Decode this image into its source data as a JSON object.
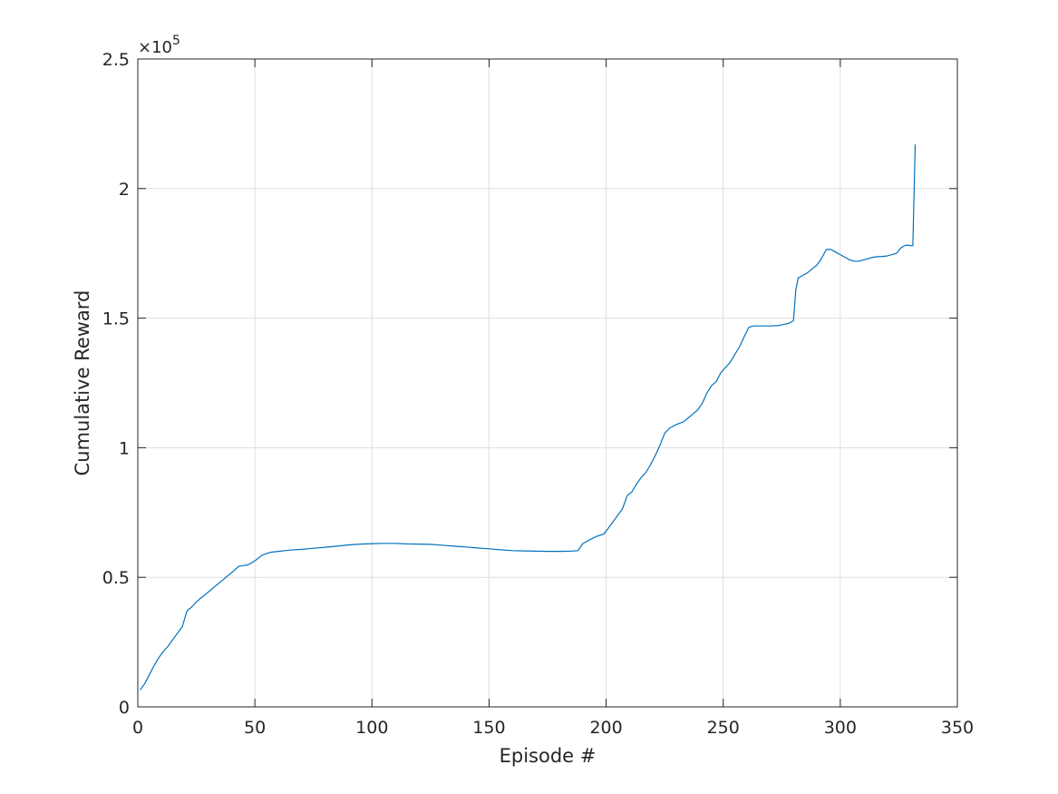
{
  "chart_data": {
    "type": "line",
    "title": "",
    "xlabel": "Episode #",
    "ylabel": "Cumulative Reward",
    "xlim": [
      0,
      350
    ],
    "ylim": [
      0,
      2.5
    ],
    "y_exponent_label": "×10",
    "y_exponent_power": "5",
    "grid": true,
    "legend": "none",
    "x_ticks": [
      "0",
      "50",
      "100",
      "150",
      "200",
      "250",
      "300",
      "350"
    ],
    "y_ticks": [
      "0",
      "0.5",
      "1",
      "1.5",
      "2",
      "2.5"
    ],
    "x_tick_values": [
      0,
      50,
      100,
      150,
      200,
      250,
      300,
      350
    ],
    "y_tick_values": [
      0,
      0.5,
      1,
      1.5,
      2,
      2.5
    ],
    "series": [
      {
        "color": "#0072bd",
        "points": [
          [
            1,
            0.065
          ],
          [
            3,
            0.09
          ],
          [
            5,
            0.125
          ],
          [
            7,
            0.16
          ],
          [
            9,
            0.19
          ],
          [
            11,
            0.215
          ],
          [
            13,
            0.235
          ],
          [
            15,
            0.26
          ],
          [
            17,
            0.285
          ],
          [
            19,
            0.31
          ],
          [
            21,
            0.37
          ],
          [
            23,
            0.385
          ],
          [
            25,
            0.405
          ],
          [
            27,
            0.42
          ],
          [
            29,
            0.435
          ],
          [
            31,
            0.45
          ],
          [
            33,
            0.465
          ],
          [
            35,
            0.48
          ],
          [
            37,
            0.495
          ],
          [
            39,
            0.51
          ],
          [
            41,
            0.525
          ],
          [
            43,
            0.542
          ],
          [
            45,
            0.545
          ],
          [
            47,
            0.548
          ],
          [
            49,
            0.558
          ],
          [
            51,
            0.57
          ],
          [
            53,
            0.585
          ],
          [
            55,
            0.592
          ],
          [
            57,
            0.597
          ],
          [
            60,
            0.6
          ],
          [
            65,
            0.605
          ],
          [
            70,
            0.608
          ],
          [
            75,
            0.612
          ],
          [
            80,
            0.616
          ],
          [
            85,
            0.62
          ],
          [
            90,
            0.625
          ],
          [
            95,
            0.628
          ],
          [
            100,
            0.63
          ],
          [
            105,
            0.631
          ],
          [
            110,
            0.631
          ],
          [
            115,
            0.629
          ],
          [
            120,
            0.628
          ],
          [
            125,
            0.627
          ],
          [
            130,
            0.624
          ],
          [
            135,
            0.62
          ],
          [
            140,
            0.617
          ],
          [
            145,
            0.613
          ],
          [
            150,
            0.61
          ],
          [
            155,
            0.606
          ],
          [
            160,
            0.603
          ],
          [
            165,
            0.602
          ],
          [
            170,
            0.601
          ],
          [
            175,
            0.6
          ],
          [
            180,
            0.6
          ],
          [
            185,
            0.601
          ],
          [
            188,
            0.603
          ],
          [
            190,
            0.63
          ],
          [
            193,
            0.645
          ],
          [
            196,
            0.658
          ],
          [
            199,
            0.667
          ],
          [
            201,
            0.69
          ],
          [
            203,
            0.715
          ],
          [
            205,
            0.74
          ],
          [
            207,
            0.765
          ],
          [
            209,
            0.815
          ],
          [
            211,
            0.83
          ],
          [
            213,
            0.86
          ],
          [
            215,
            0.885
          ],
          [
            217,
            0.905
          ],
          [
            219,
            0.935
          ],
          [
            221,
            0.97
          ],
          [
            223,
            1.01
          ],
          [
            225,
            1.055
          ],
          [
            227,
            1.075
          ],
          [
            229,
            1.085
          ],
          [
            231,
            1.093
          ],
          [
            233,
            1.1
          ],
          [
            235,
            1.115
          ],
          [
            237,
            1.13
          ],
          [
            239,
            1.145
          ],
          [
            241,
            1.17
          ],
          [
            243,
            1.21
          ],
          [
            245,
            1.24
          ],
          [
            247,
            1.255
          ],
          [
            249,
            1.29
          ],
          [
            251,
            1.31
          ],
          [
            253,
            1.33
          ],
          [
            255,
            1.36
          ],
          [
            257,
            1.39
          ],
          [
            259,
            1.43
          ],
          [
            261,
            1.465
          ],
          [
            263,
            1.47
          ],
          [
            266,
            1.47
          ],
          [
            270,
            1.47
          ],
          [
            274,
            1.472
          ],
          [
            278,
            1.48
          ],
          [
            280,
            1.49
          ],
          [
            281,
            1.61
          ],
          [
            282,
            1.655
          ],
          [
            284,
            1.665
          ],
          [
            286,
            1.675
          ],
          [
            288,
            1.69
          ],
          [
            290,
            1.705
          ],
          [
            292,
            1.73
          ],
          [
            294,
            1.765
          ],
          [
            296,
            1.765
          ],
          [
            298,
            1.755
          ],
          [
            300,
            1.745
          ],
          [
            302,
            1.735
          ],
          [
            304,
            1.725
          ],
          [
            306,
            1.72
          ],
          [
            308,
            1.72
          ],
          [
            310,
            1.725
          ],
          [
            312,
            1.73
          ],
          [
            314,
            1.735
          ],
          [
            316,
            1.737
          ],
          [
            318,
            1.738
          ],
          [
            320,
            1.74
          ],
          [
            322,
            1.745
          ],
          [
            324,
            1.75
          ],
          [
            326,
            1.772
          ],
          [
            328,
            1.782
          ],
          [
            330,
            1.78
          ],
          [
            331,
            1.78
          ],
          [
            332,
            2.17
          ]
        ]
      }
    ]
  }
}
